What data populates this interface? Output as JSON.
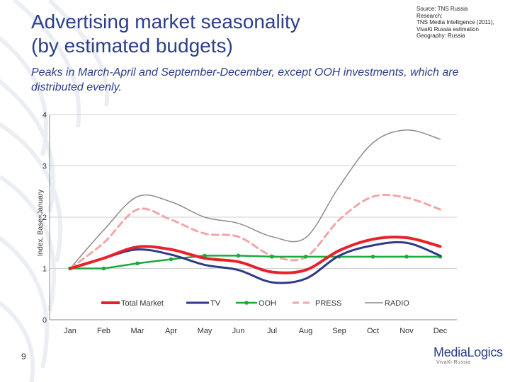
{
  "header": {
    "title_line1": "Advertising market seasonality",
    "title_line2": "(by estimated budgets)",
    "source_lines": [
      "Source: TNS Russia",
      "Research:",
      "TNS Media Intelligence (2011),",
      "VivaKi Russia estimation",
      "Geography: Russia"
    ],
    "subtitle": "Peaks in March-April and September-December, except OOH investments, which are distributed evenly."
  },
  "footer": {
    "page_number": "9",
    "logo_main": "MediaLogics",
    "logo_sub": "VivaKi Russia"
  },
  "chart_data": {
    "type": "line",
    "title": "",
    "xlabel": "",
    "ylabel": "Index, Base=January",
    "categories": [
      "Jan",
      "Feb",
      "Mar",
      "Apr",
      "May",
      "Jun",
      "Jul",
      "Aug",
      "Sep",
      "Oct",
      "Nov",
      "Dec"
    ],
    "ylim": [
      0,
      4
    ],
    "yticks": [
      "0",
      "1",
      "2",
      "3",
      "4"
    ],
    "grid": true,
    "legend_position": "bottom",
    "series": [
      {
        "name": "Total Market",
        "color": "#e8212a",
        "style": "thick",
        "values": [
          1.0,
          1.2,
          1.42,
          1.37,
          1.2,
          1.13,
          0.93,
          0.97,
          1.35,
          1.57,
          1.6,
          1.43
        ]
      },
      {
        "name": "TV",
        "color": "#2e3a87",
        "style": "solid",
        "values": [
          1.0,
          1.2,
          1.37,
          1.27,
          1.07,
          0.97,
          0.73,
          0.8,
          1.25,
          1.45,
          1.5,
          1.25
        ]
      },
      {
        "name": "OOH",
        "color": "#1aaa3c",
        "style": "markers",
        "values": [
          1.0,
          1.0,
          1.1,
          1.18,
          1.25,
          1.25,
          1.23,
          1.23,
          1.23,
          1.23,
          1.23,
          1.23
        ]
      },
      {
        "name": "PRESS",
        "color": "#f2a6a6",
        "style": "dashed",
        "values": [
          1.0,
          1.5,
          2.15,
          1.95,
          1.68,
          1.62,
          1.25,
          1.22,
          1.95,
          2.4,
          2.38,
          2.15
        ]
      },
      {
        "name": "RADIO",
        "color": "#8c8c8c",
        "style": "thin",
        "values": [
          1.0,
          1.75,
          2.4,
          2.3,
          2.0,
          1.88,
          1.62,
          1.6,
          2.6,
          3.45,
          3.7,
          3.52
        ]
      }
    ]
  }
}
